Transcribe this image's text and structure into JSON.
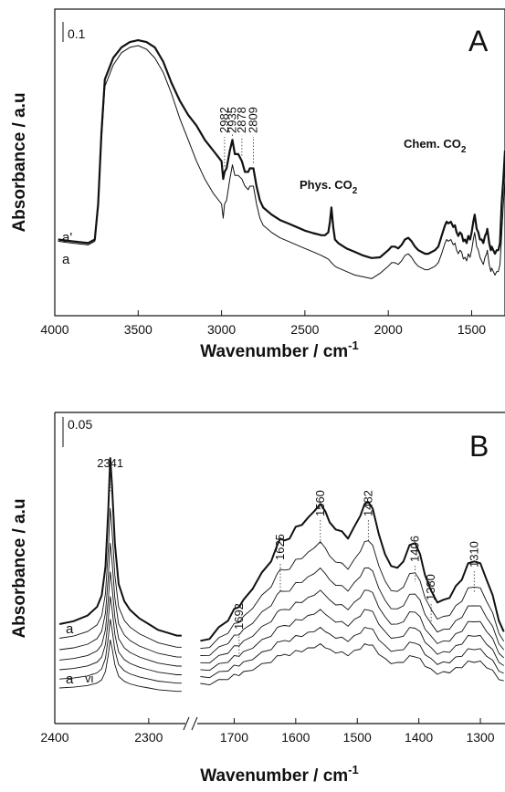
{
  "chart_data": [
    {
      "panel": "A",
      "type": "line",
      "xlabel": "Wavenumber / cm",
      "xlabel_sup": "-1",
      "ylabel": "Absorbance / a.u",
      "xlim": [
        4000,
        1300
      ],
      "x_reversed": true,
      "xticks": [
        4000,
        3500,
        3000,
        2500,
        2000,
        1500
      ],
      "scale_bar_label": "0.1",
      "panel_label": "A",
      "series": [
        {
          "name": "a'",
          "thick": true,
          "x": [
            3980,
            3900,
            3800,
            3760,
            3740,
            3720,
            3700,
            3650,
            3600,
            3550,
            3500,
            3450,
            3400,
            3350,
            3300,
            3250,
            3200,
            3150,
            3100,
            3050,
            3000,
            2990,
            2982,
            2970,
            2950,
            2935,
            2920,
            2900,
            2878,
            2860,
            2840,
            2830,
            2809,
            2790,
            2770,
            2750,
            2700,
            2650,
            2600,
            2550,
            2500,
            2450,
            2400,
            2380,
            2360,
            2350,
            2341,
            2330,
            2320,
            2300,
            2250,
            2200,
            2150,
            2100,
            2050,
            2000,
            1980,
            1960,
            1940,
            1920,
            1900,
            1880,
            1860,
            1840,
            1820,
            1800,
            1780,
            1760,
            1740,
            1720,
            1700,
            1680,
            1660,
            1650,
            1640,
            1625,
            1610,
            1600,
            1590,
            1580,
            1570,
            1560,
            1550,
            1540,
            1530,
            1520,
            1510,
            1500,
            1490,
            1482,
            1470,
            1460,
            1450,
            1440,
            1430,
            1420,
            1410,
            1406,
            1395,
            1385,
            1380,
            1370,
            1360,
            1350,
            1340,
            1330,
            1320,
            1310,
            1300
          ],
          "y": [
            0.05,
            0.045,
            0.04,
            0.05,
            0.15,
            0.35,
            0.5,
            0.56,
            0.59,
            0.605,
            0.61,
            0.605,
            0.59,
            0.55,
            0.49,
            0.44,
            0.4,
            0.37,
            0.33,
            0.3,
            0.27,
            0.22,
            0.24,
            0.25,
            0.3,
            0.33,
            0.29,
            0.29,
            0.27,
            0.24,
            0.24,
            0.25,
            0.25,
            0.2,
            0.16,
            0.14,
            0.12,
            0.105,
            0.095,
            0.085,
            0.075,
            0.068,
            0.062,
            0.062,
            0.07,
            0.1,
            0.14,
            0.085,
            0.05,
            0.04,
            0.025,
            0.015,
            0.005,
            -0.002,
            0.0,
            0.02,
            0.03,
            0.03,
            0.025,
            0.035,
            0.05,
            0.055,
            0.045,
            0.03,
            0.02,
            0.015,
            0.01,
            0.01,
            0.015,
            0.02,
            0.03,
            0.06,
            0.09,
            0.1,
            0.095,
            0.1,
            0.085,
            0.09,
            0.07,
            0.06,
            0.07,
            0.065,
            0.045,
            0.05,
            0.04,
            0.06,
            0.05,
            0.07,
            0.1,
            0.12,
            0.08,
            0.07,
            0.05,
            0.05,
            0.04,
            0.06,
            0.07,
            0.08,
            0.04,
            0.02,
            0.03,
            0.02,
            0.01,
            0.02,
            0.02,
            0.04,
            0.15,
            0.22,
            0.3
          ]
        },
        {
          "name": "a",
          "thick": false,
          "x": [
            3980,
            3900,
            3800,
            3760,
            3740,
            3720,
            3700,
            3650,
            3600,
            3550,
            3500,
            3450,
            3400,
            3350,
            3300,
            3250,
            3200,
            3150,
            3100,
            3050,
            3000,
            2990,
            2982,
            2970,
            2950,
            2935,
            2920,
            2900,
            2878,
            2860,
            2840,
            2830,
            2809,
            2790,
            2770,
            2750,
            2700,
            2650,
            2600,
            2550,
            2500,
            2450,
            2400,
            2380,
            2360,
            2350,
            2341,
            2330,
            2320,
            2300,
            2250,
            2200,
            2150,
            2100,
            2050,
            2000,
            1980,
            1960,
            1940,
            1920,
            1900,
            1880,
            1860,
            1840,
            1820,
            1800,
            1780,
            1760,
            1740,
            1720,
            1700,
            1680,
            1660,
            1650,
            1640,
            1625,
            1610,
            1600,
            1590,
            1580,
            1570,
            1560,
            1550,
            1540,
            1530,
            1520,
            1510,
            1500,
            1490,
            1482,
            1470,
            1460,
            1450,
            1440,
            1430,
            1420,
            1410,
            1406,
            1395,
            1385,
            1380,
            1370,
            1360,
            1350,
            1340,
            1330,
            1320,
            1310,
            1300
          ],
          "y": [
            0.045,
            0.04,
            0.035,
            0.045,
            0.14,
            0.33,
            0.48,
            0.54,
            0.575,
            0.59,
            0.595,
            0.585,
            0.56,
            0.52,
            0.46,
            0.39,
            0.33,
            0.27,
            0.22,
            0.18,
            0.15,
            0.11,
            0.15,
            0.16,
            0.22,
            0.26,
            0.23,
            0.23,
            0.22,
            0.2,
            0.19,
            0.2,
            0.2,
            0.15,
            0.11,
            0.09,
            0.07,
            0.055,
            0.045,
            0.035,
            0.025,
            0.015,
            0.005,
            0.0,
            -0.005,
            -0.01,
            -0.015,
            -0.02,
            -0.025,
            -0.03,
            -0.04,
            -0.05,
            -0.055,
            -0.06,
            -0.045,
            -0.025,
            -0.015,
            -0.015,
            -0.02,
            -0.01,
            0.005,
            0.01,
            0.0,
            -0.015,
            -0.025,
            -0.03,
            -0.035,
            -0.035,
            -0.03,
            -0.025,
            -0.015,
            0.01,
            0.04,
            0.05,
            0.045,
            0.05,
            0.035,
            0.04,
            0.02,
            0.01,
            0.02,
            0.015,
            -0.005,
            0.0,
            -0.01,
            0.01,
            0.0,
            0.02,
            0.05,
            0.07,
            0.03,
            0.02,
            0.0,
            -0.01,
            -0.02,
            0.0,
            0.01,
            0.02,
            -0.02,
            -0.04,
            -0.03,
            -0.04,
            -0.05,
            -0.04,
            -0.04,
            -0.02,
            0.06,
            0.15,
            0.22
          ]
        }
      ],
      "annotations": [
        {
          "text": "2982",
          "x": 2982,
          "y": 0.245
        },
        {
          "text": "2935",
          "x": 2935,
          "y": 0.335
        },
        {
          "text": "2878",
          "x": 2878,
          "y": 0.275
        },
        {
          "text": "2809",
          "x": 2809,
          "y": 0.255
        }
      ],
      "region_labels": {
        "phys_main": "Phys. CO",
        "phys_sub": "2",
        "chem_main": "Chem. CO",
        "chem_sub": "2"
      }
    },
    {
      "panel": "B",
      "type": "line",
      "xlabel": "Wavenumber / cm",
      "xlabel_sup": "-1",
      "ylabel": "Absorbance / a.u",
      "x_broken": true,
      "segment1_xlim": [
        2400,
        2260
      ],
      "segment2_xlim": [
        1760,
        1260
      ],
      "xticks_segment1": [
        2400,
        2300
      ],
      "xticks_segment2": [
        1700,
        1600,
        1500,
        1400,
        1300
      ],
      "scale_bar_label": "0.05",
      "panel_label": "B",
      "series_labels": {
        "top": "a",
        "bottom": "a",
        "bottom_tail": "vi"
      },
      "annotations": [
        {
          "text": "2341",
          "x": 2341,
          "seg": 1
        },
        {
          "text": "1692",
          "x": 1692,
          "seg": 2
        },
        {
          "text": "1625",
          "x": 1625,
          "seg": 2
        },
        {
          "text": "1560",
          "x": 1560,
          "seg": 2
        },
        {
          "text": "1482",
          "x": 1482,
          "seg": 2
        },
        {
          "text": "1406",
          "x": 1406,
          "seg": 2
        },
        {
          "text": "1380",
          "x": 1380,
          "seg": 2
        },
        {
          "text": "1310",
          "x": 1310,
          "seg": 2
        }
      ],
      "spectra_count": 7,
      "seg1_shape": {
        "x": [
          2395,
          2380,
          2365,
          2355,
          2350,
          2346,
          2343,
          2341,
          2339,
          2336,
          2332,
          2326,
          2320,
          2310,
          2300,
          2290,
          2280,
          2270,
          2265
        ],
        "y": [
          0.06,
          0.065,
          0.075,
          0.09,
          0.11,
          0.16,
          0.26,
          0.35,
          0.3,
          0.2,
          0.13,
          0.1,
          0.085,
          0.07,
          0.06,
          0.05,
          0.045,
          0.04,
          0.04
        ]
      },
      "seg2_shape": {
        "x": [
          1755,
          1740,
          1725,
          1710,
          1700,
          1692,
          1685,
          1670,
          1655,
          1640,
          1630,
          1625,
          1618,
          1610,
          1600,
          1590,
          1580,
          1570,
          1560,
          1552,
          1545,
          1535,
          1525,
          1515,
          1505,
          1495,
          1488,
          1482,
          1475,
          1465,
          1455,
          1445,
          1435,
          1425,
          1415,
          1406,
          1398,
          1390,
          1380,
          1370,
          1360,
          1350,
          1340,
          1330,
          1320,
          1310,
          1300,
          1290,
          1280,
          1270,
          1262
        ],
        "y": [
          0.01,
          0.02,
          0.04,
          0.06,
          0.08,
          0.09,
          0.1,
          0.13,
          0.16,
          0.19,
          0.22,
          0.24,
          0.23,
          0.24,
          0.26,
          0.27,
          0.28,
          0.3,
          0.31,
          0.3,
          0.27,
          0.26,
          0.25,
          0.24,
          0.26,
          0.29,
          0.31,
          0.32,
          0.3,
          0.25,
          0.2,
          0.18,
          0.17,
          0.19,
          0.22,
          0.23,
          0.2,
          0.16,
          0.12,
          0.1,
          0.1,
          0.11,
          0.13,
          0.15,
          0.18,
          0.19,
          0.18,
          0.15,
          0.11,
          0.06,
          0.03
        ]
      },
      "scales": [
        1.0,
        0.78,
        0.64,
        0.53,
        0.44,
        0.36,
        0.29
      ]
    }
  ]
}
